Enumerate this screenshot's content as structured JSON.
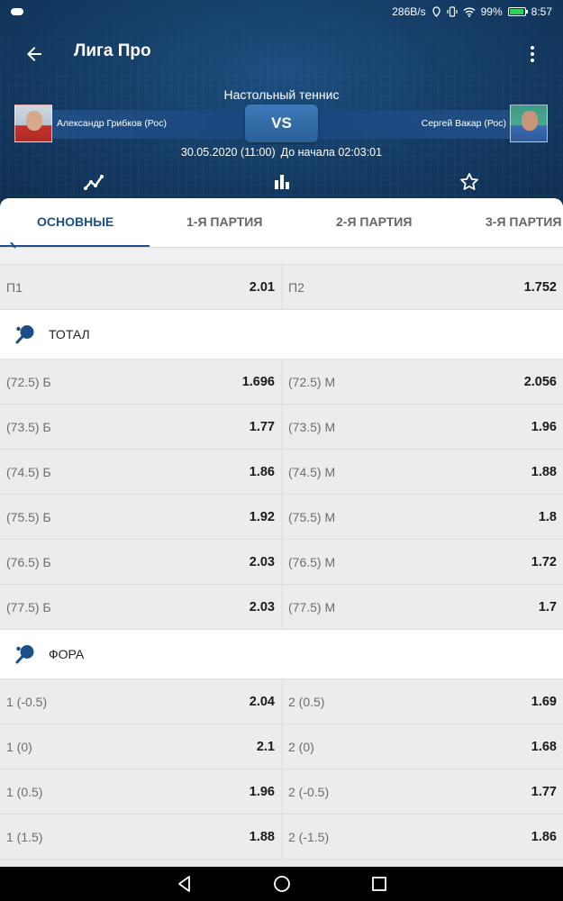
{
  "status_bar": {
    "network_speed": "286B/s",
    "battery": "99%",
    "time": "8:57"
  },
  "toolbar": {
    "title": "Лига Про"
  },
  "match": {
    "sport": "Настольный теннис",
    "player1": "Александр Грибков (Рос)",
    "player2": "Сергей Вакар (Рос)",
    "vs_label": "VS",
    "date_time": "30.05.2020 (11:00)",
    "countdown": "До начала 02:03:01"
  },
  "tabs": [
    {
      "label": "Основные",
      "active": true
    },
    {
      "label": "1-я партия"
    },
    {
      "label": "2-я партия"
    },
    {
      "label": "3-я партия"
    }
  ],
  "colors": {
    "accent": "#1d4f86",
    "header_bg": "#153e68"
  },
  "win_row": {
    "left_name": "П1",
    "left_odd": "2.01",
    "right_name": "П2",
    "right_odd": "1.752"
  },
  "total": {
    "title": "Тотал",
    "rows": [
      {
        "left_name": "(72.5) Б",
        "left_odd": "1.696",
        "right_name": "(72.5) М",
        "right_odd": "2.056"
      },
      {
        "left_name": "(73.5) Б",
        "left_odd": "1.77",
        "right_name": "(73.5) М",
        "right_odd": "1.96"
      },
      {
        "left_name": "(74.5) Б",
        "left_odd": "1.86",
        "right_name": "(74.5) М",
        "right_odd": "1.88"
      },
      {
        "left_name": "(75.5) Б",
        "left_odd": "1.92",
        "right_name": "(75.5) М",
        "right_odd": "1.8"
      },
      {
        "left_name": "(76.5) Б",
        "left_odd": "2.03",
        "right_name": "(76.5) М",
        "right_odd": "1.72"
      },
      {
        "left_name": "(77.5) Б",
        "left_odd": "2.03",
        "right_name": "(77.5) М",
        "right_odd": "1.7"
      }
    ]
  },
  "fora": {
    "title": "Фора",
    "rows": [
      {
        "left_name": "1 (-0.5)",
        "left_odd": "2.04",
        "right_name": "2 (0.5)",
        "right_odd": "1.69"
      },
      {
        "left_name": "1 (0)",
        "left_odd": "2.1",
        "right_name": "2 (0)",
        "right_odd": "1.68"
      },
      {
        "left_name": "1 (0.5)",
        "left_odd": "1.96",
        "right_name": "2 (-0.5)",
        "right_odd": "1.77"
      },
      {
        "left_name": "1 (1.5)",
        "left_odd": "1.88",
        "right_name": "2 (-1.5)",
        "right_odd": "1.86"
      }
    ]
  },
  "icons": {
    "back": "arrow-back-icon",
    "more": "more-vert-icon",
    "chart": "line-chart-icon",
    "stats": "bar-chart-icon",
    "favorite": "star-icon",
    "section": "ping-pong-paddle-icon"
  }
}
